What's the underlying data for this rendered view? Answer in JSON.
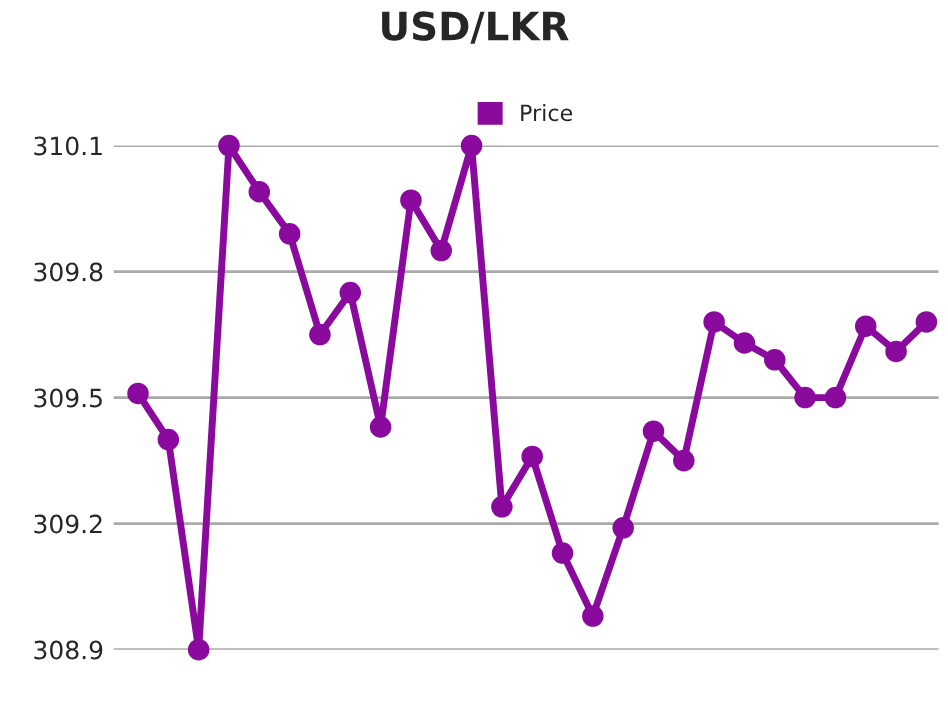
{
  "chart_data": {
    "type": "line",
    "title": "USD/LKR",
    "categories": [
      null,
      null,
      null,
      null,
      null,
      null,
      null,
      null,
      null,
      null,
      null,
      null,
      null,
      null,
      null,
      null,
      null,
      null,
      null,
      null,
      null,
      null,
      null,
      null,
      null,
      null,
      null
    ],
    "series": [
      {
        "name": "Price",
        "color": "#8a0a9e",
        "values": [
          309.51,
          309.4,
          308.9,
          310.1,
          309.99,
          309.89,
          309.65,
          309.75,
          309.43,
          309.97,
          309.85,
          310.1,
          309.24,
          309.36,
          309.13,
          308.98,
          309.19,
          309.42,
          309.35,
          309.68,
          309.63,
          309.59,
          309.5,
          309.5,
          309.67,
          309.61,
          309.68
        ]
      }
    ],
    "ylim": [
      308.9,
      310.1
    ],
    "yticks": [
      308.9,
      309.2,
      309.5,
      309.8,
      310.1
    ],
    "tick_labels": "y",
    "grid": "y",
    "legend": "top",
    "marker": "circle",
    "line_style": "solid"
  }
}
